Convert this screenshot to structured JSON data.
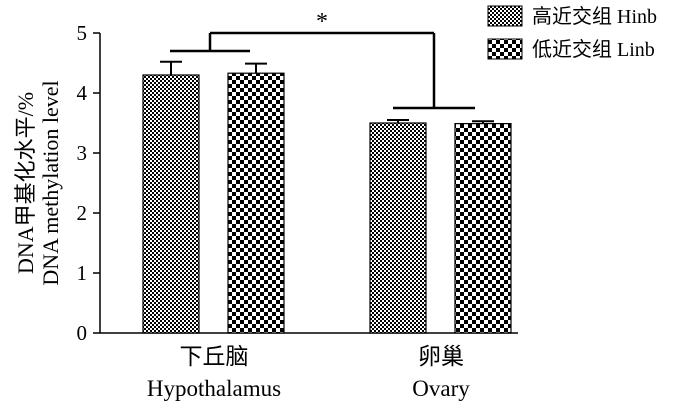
{
  "chart_data": {
    "type": "bar",
    "title": "",
    "categories": [
      {
        "zh": "下丘脑",
        "en": "Hypothalamus"
      },
      {
        "zh": "卵巢",
        "en": "Ovary"
      }
    ],
    "series": [
      {
        "name": "高近交组 Hinb",
        "values": [
          4.3,
          3.5
        ],
        "errors": [
          0.22,
          0.05
        ],
        "pattern": "fine-check"
      },
      {
        "name": "低近交组 Linb",
        "values": [
          4.33,
          3.49
        ],
        "errors": [
          0.16,
          0.04
        ],
        "pattern": "coarse-check"
      }
    ],
    "ylabel_zh": "DNA甲基化水平/%",
    "ylabel_en": "DNA methylation level",
    "xlabel": "",
    "ylim": [
      0,
      5
    ],
    "yticks": [
      "0",
      "1",
      "2",
      "3",
      "4",
      "5"
    ],
    "significance": "*",
    "legend_position": "top-right",
    "grid": false
  }
}
